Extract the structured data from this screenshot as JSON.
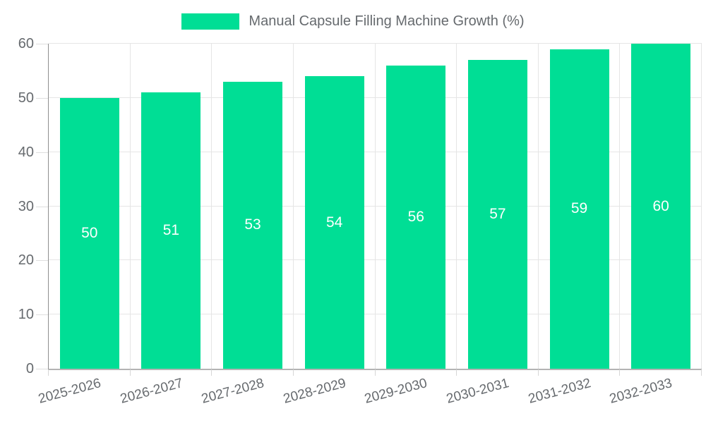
{
  "legend": {
    "label": "Manual Capsule Filling Machine Growth (%)",
    "swatch_color": "#00de95"
  },
  "chart_data": {
    "type": "bar",
    "title": "Manual Capsule Filling Machine Growth (%)",
    "categories": [
      "2025-2026",
      "2026-2027",
      "2027-2028",
      "2028-2029",
      "2029-2030",
      "2030-2031",
      "2031-2032",
      "2032-2033"
    ],
    "series": [
      {
        "name": "Manual Capsule Filling Machine Growth (%)",
        "values": [
          50,
          51,
          53,
          54,
          56,
          57,
          59,
          60
        ]
      }
    ],
    "value_labels": [
      "50",
      "51",
      "53",
      "54",
      "56",
      "57",
      "59",
      "60"
    ],
    "xlabel": "",
    "ylabel": "",
    "ylim": [
      0,
      60
    ],
    "yticks": [
      0,
      10,
      20,
      30,
      40,
      50,
      60
    ],
    "grid": true,
    "legend_position": "top",
    "x_tick_rotation_deg": -15,
    "bar_color": "#00de95",
    "value_label_color": "#ffffff",
    "axis_text_color": "#666a6e",
    "gridline_color": "#e5e5e5"
  }
}
